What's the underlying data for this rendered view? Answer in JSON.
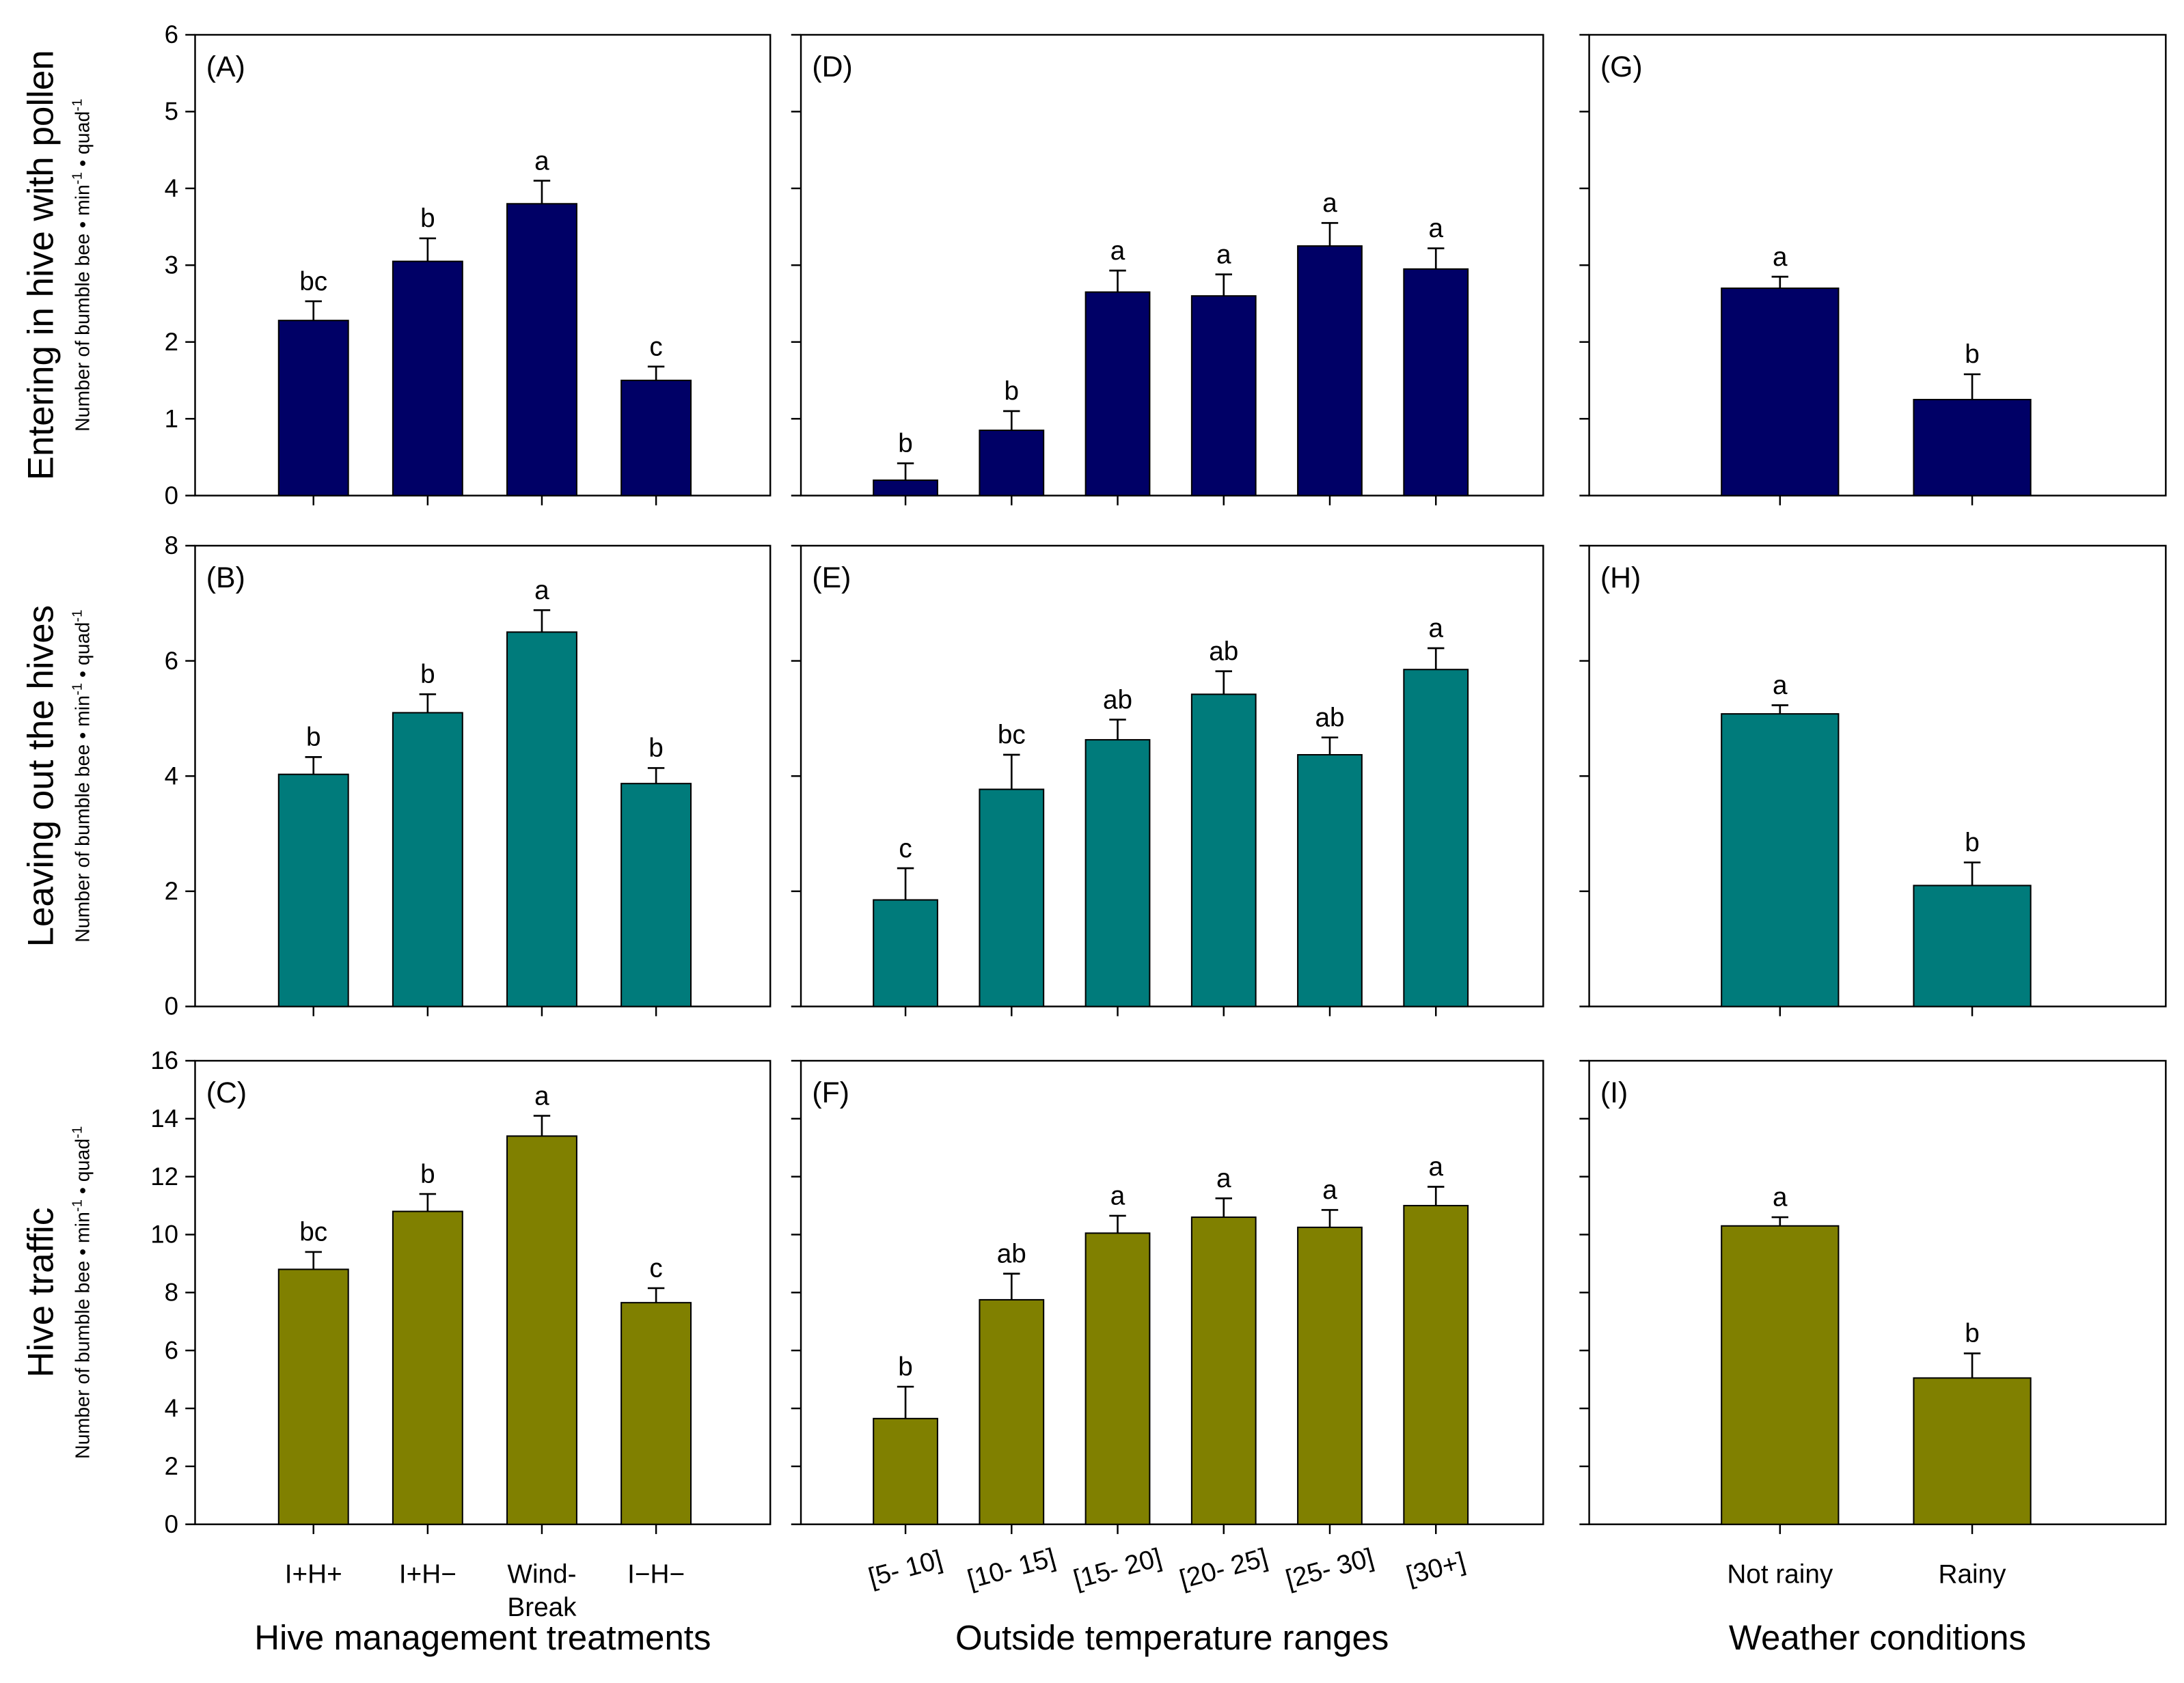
{
  "chart_data": [
    {
      "type": "bar",
      "panel": "(A)",
      "categories": [
        "I+H+",
        "I+H−",
        [
          "Wind-",
          "Break"
        ],
        "I−H−"
      ],
      "values": [
        2.28,
        3.05,
        3.8,
        1.5
      ],
      "errors": [
        0.25,
        0.3,
        0.3,
        0.18
      ],
      "letters": [
        "bc",
        "b",
        "a",
        "c"
      ],
      "color": "#000066",
      "ylim": [
        0,
        6
      ],
      "yticks": [
        0,
        1,
        2,
        3,
        4,
        5,
        6
      ],
      "tick_labels": true,
      "ylabel": "Entering in hive with pollen",
      "ylabel_units": [
        "Number of bumble bee • min",
        "-1",
        " • quad",
        "-1"
      ],
      "show_categories": false
    },
    {
      "type": "bar",
      "panel": "(D)",
      "categories": [
        "[5- 10]",
        "[10- 15]",
        "[15- 20]",
        "[20- 25]",
        "[25- 30]",
        "[30+]"
      ],
      "values": [
        0.2,
        0.85,
        2.65,
        2.6,
        3.25,
        2.95
      ],
      "errors": [
        0.22,
        0.25,
        0.28,
        0.28,
        0.3,
        0.27
      ],
      "letters": [
        "b",
        "b",
        "a",
        "a",
        "a",
        "a"
      ],
      "color": "#000066",
      "ylim": [
        0,
        6
      ],
      "yticks": [
        0,
        1,
        2,
        3,
        4,
        5,
        6
      ],
      "tick_labels": false,
      "show_categories": false
    },
    {
      "type": "bar",
      "panel": "(G)",
      "categories": [
        "Not rainy",
        "Rainy"
      ],
      "values": [
        2.7,
        1.25
      ],
      "errors": [
        0.15,
        0.33
      ],
      "letters": [
        "a",
        "b"
      ],
      "color": "#000066",
      "ylim": [
        0,
        6
      ],
      "yticks": [
        0,
        1,
        2,
        3,
        4,
        5,
        6
      ],
      "tick_labels": false,
      "show_categories": false
    },
    {
      "type": "bar",
      "panel": "(B)",
      "categories": [
        "I+H+",
        "I+H−",
        [
          "Wind-",
          "Break"
        ],
        "I−H−"
      ],
      "values": [
        4.03,
        5.1,
        6.5,
        3.87
      ],
      "errors": [
        0.3,
        0.32,
        0.38,
        0.27
      ],
      "letters": [
        "b",
        "b",
        "a",
        "b"
      ],
      "color": "#007b7b",
      "ylim": [
        0,
        8
      ],
      "yticks": [
        0,
        2,
        4,
        6,
        8
      ],
      "tick_labels": true,
      "ylabel": "Leaving out the hives",
      "ylabel_units": [
        "Number of bumble bee • min",
        "-1",
        " • quad",
        "-1"
      ],
      "show_categories": false
    },
    {
      "type": "bar",
      "panel": "(E)",
      "categories": [
        "[5- 10]",
        "[10- 15]",
        "[15- 20]",
        "[20- 25]",
        "[25- 30]",
        "[30+]"
      ],
      "values": [
        1.85,
        3.77,
        4.63,
        5.42,
        4.37,
        5.85
      ],
      "errors": [
        0.55,
        0.6,
        0.35,
        0.4,
        0.3,
        0.37
      ],
      "letters": [
        "c",
        "bc",
        "ab",
        "ab",
        "ab",
        "a"
      ],
      "color": "#007b7b",
      "ylim": [
        0,
        8
      ],
      "yticks": [
        0,
        2,
        4,
        6,
        8
      ],
      "tick_labels": false,
      "show_categories": false
    },
    {
      "type": "bar",
      "panel": "(H)",
      "categories": [
        "Not rainy",
        "Rainy"
      ],
      "values": [
        5.08,
        2.1
      ],
      "errors": [
        0.15,
        0.4
      ],
      "letters": [
        "a",
        "b"
      ],
      "color": "#007b7b",
      "ylim": [
        0,
        8
      ],
      "yticks": [
        0,
        2,
        4,
        6,
        8
      ],
      "tick_labels": false,
      "show_categories": false
    },
    {
      "type": "bar",
      "panel": "(C)",
      "categories": [
        "I+H+",
        "I+H−",
        [
          "Wind-",
          "Break"
        ],
        "I−H−"
      ],
      "values": [
        8.8,
        10.8,
        13.4,
        7.65
      ],
      "errors": [
        0.6,
        0.6,
        0.7,
        0.5
      ],
      "letters": [
        "bc",
        "b",
        "a",
        "c"
      ],
      "color": "#808000",
      "ylim": [
        0,
        16
      ],
      "yticks": [
        0,
        2,
        4,
        6,
        8,
        10,
        12,
        14,
        16
      ],
      "tick_labels": true,
      "ylabel": "Hive traffic",
      "ylabel_units": [
        "Number of bumble bee • min",
        "-1",
        " • quad",
        "-1"
      ],
      "xlabel": "Hive management treatments",
      "show_categories": true
    },
    {
      "type": "bar",
      "panel": "(F)",
      "categories": [
        "[5- 10]",
        "[10- 15]",
        "[15- 20]",
        "[20- 25]",
        "[25- 30]",
        "[30+]"
      ],
      "values": [
        3.65,
        7.75,
        10.05,
        10.6,
        10.25,
        11.0
      ],
      "errors": [
        1.1,
        0.9,
        0.6,
        0.65,
        0.6,
        0.65
      ],
      "letters": [
        "b",
        "ab",
        "a",
        "a",
        "a",
        "a"
      ],
      "color": "#808000",
      "ylim": [
        0,
        16
      ],
      "yticks": [
        0,
        2,
        4,
        6,
        8,
        10,
        12,
        14,
        16
      ],
      "tick_labels": false,
      "xlabel": "Outside temperature ranges",
      "show_categories": true,
      "rotate_categories": true
    },
    {
      "type": "bar",
      "panel": "(I)",
      "categories": [
        "Not rainy",
        "Rainy"
      ],
      "values": [
        10.3,
        5.05
      ],
      "errors": [
        0.3,
        0.85
      ],
      "letters": [
        "a",
        "b"
      ],
      "color": "#808000",
      "ylim": [
        0,
        16
      ],
      "yticks": [
        0,
        2,
        4,
        6,
        8,
        10,
        12,
        14,
        16
      ],
      "tick_labels": false,
      "xlabel": "Weather conditions",
      "show_categories": true
    }
  ]
}
